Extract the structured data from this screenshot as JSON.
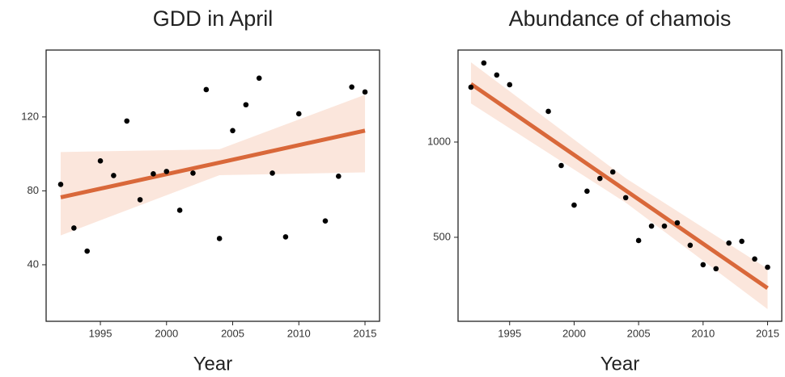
{
  "chart_data": [
    {
      "type": "scatter",
      "title": "GDD in April",
      "x_label": "Year",
      "x": [
        1992,
        1993,
        1994,
        1995,
        1996,
        1997,
        1998,
        1999,
        2000,
        2001,
        2002,
        2003,
        2004,
        2005,
        2006,
        2007,
        2008,
        2009,
        2010,
        2012,
        2013,
        2014,
        2015
      ],
      "values": [
        83.5,
        59.9,
        47.4,
        96.2,
        88.3,
        117.8,
        75.2,
        89.2,
        90.5,
        69.5,
        89.6,
        134.8,
        54.2,
        112.6,
        126.6,
        141,
        89.6,
        55.1,
        121.7,
        63.7,
        87.9,
        136.2,
        133.5
      ],
      "color": "#000000",
      "fit": {
        "x": [
          1992,
          2004,
          2015
        ],
        "values": [
          76.5,
          95.3,
          112.6
        ],
        "lower": [
          55.9,
          88.5,
          90
        ],
        "upper": [
          101,
          102.5,
          132
        ],
        "color": "#d9683a",
        "band_color": "#fbe6dc"
      },
      "xlim": [
        1990.9,
        2016.1
      ],
      "xticks": [
        1995,
        2000,
        2005,
        2010,
        2015
      ],
      "ylim": [
        9.4,
        156.2
      ],
      "yticks": [
        40,
        80,
        120
      ]
    },
    {
      "type": "scatter",
      "title": "Abundance of chamois",
      "x_label": "Year",
      "x": [
        1992,
        1993,
        1994,
        1995,
        1998,
        1999,
        2000,
        2001,
        2002,
        2003,
        2004,
        2005,
        2006,
        2007,
        2008,
        2009,
        2010,
        2011,
        2012,
        2013,
        2014,
        2015
      ],
      "values": [
        1288,
        1415,
        1352,
        1301,
        1161,
        877,
        669,
        742,
        809,
        843,
        708,
        483,
        559,
        559,
        576,
        458,
        356,
        335,
        470,
        479,
        386,
        343
      ],
      "color": "#000000",
      "fit": {
        "x": [
          1992,
          2004,
          2015
        ],
        "values": [
          1305,
          746,
          233
        ],
        "lower": [
          1203,
          682,
          123
        ],
        "upper": [
          1419,
          810,
          335
        ],
        "color": "#d9683a",
        "band_color": "#fbe6dc"
      },
      "xlim": [
        1991,
        2016.1
      ],
      "xticks": [
        1995,
        2000,
        2005,
        2010,
        2015
      ],
      "ylim": [
        59,
        1483
      ],
      "yticks": [
        500,
        1000
      ]
    }
  ]
}
